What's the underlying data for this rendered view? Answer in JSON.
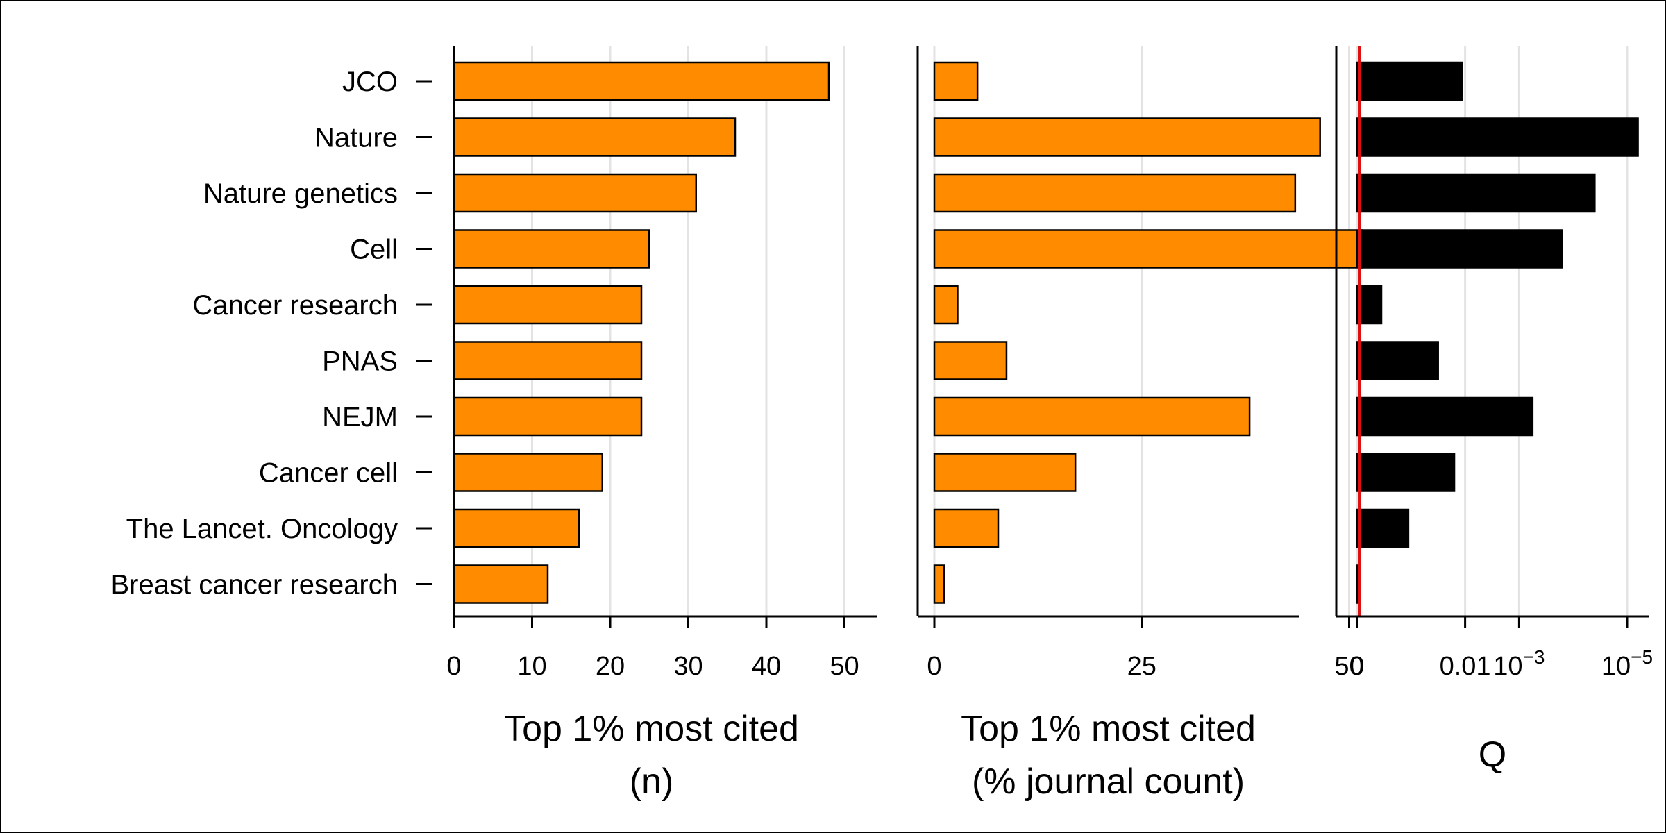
{
  "chart_data": [
    {
      "type": "bar",
      "orientation": "horizontal",
      "categories": [
        "JCO",
        "Nature",
        "Nature genetics",
        "Cell",
        "Cancer research",
        "PNAS",
        "NEJM",
        "Cancer cell",
        "The Lancet. Oncology",
        "Breast cancer research"
      ],
      "values": [
        48,
        36,
        31,
        25,
        24,
        24,
        24,
        19,
        16,
        12
      ],
      "xlabel": [
        "Top 1% most cited",
        "(n)"
      ],
      "xticks": [
        "0",
        "10",
        "20",
        "30",
        "40",
        "50"
      ],
      "xlim": [
        0,
        54
      ],
      "grid": true,
      "bar_color": "#ff8c00"
    },
    {
      "type": "bar",
      "orientation": "horizontal",
      "categories": [
        "JCO",
        "Nature",
        "Nature genetics",
        "Cell",
        "Cancer research",
        "PNAS",
        "NEJM",
        "Cancer cell",
        "The Lancet. Oncology",
        "Breast cancer research"
      ],
      "values": [
        5.2,
        46.5,
        43.5,
        51.5,
        2.8,
        8.7,
        38,
        17,
        7.7,
        1.2
      ],
      "xlabel": [
        "Top 1% most cited",
        "(% journal count)"
      ],
      "xticks": [
        "0",
        "25",
        "50"
      ],
      "xlim": [
        0,
        55
      ],
      "grid": true,
      "bar_color": "#ff8c00"
    },
    {
      "type": "bar",
      "orientation": "horizontal",
      "categories": [
        "JCO",
        "Nature",
        "Nature genetics",
        "Cell",
        "Cancer research",
        "PNAS",
        "NEJM",
        "Cancer cell",
        "The Lancet. Oncology",
        "Breast cancer research"
      ],
      "scale": "negative log10 Q",
      "values_neglog10": [
        1.95,
        5.2,
        4.4,
        3.8,
        0.45,
        1.5,
        3.25,
        1.8,
        0.95,
        0.02
      ],
      "xlabel": "Q",
      "xticks": [
        "0",
        "0.01",
        "10^-3",
        "10^-5"
      ],
      "xlim_neglog10": [
        -0.05,
        5.55
      ],
      "reference_line": 0.05,
      "reference_color": "#dd1111",
      "grid": true,
      "bar_color": "#000000"
    }
  ]
}
